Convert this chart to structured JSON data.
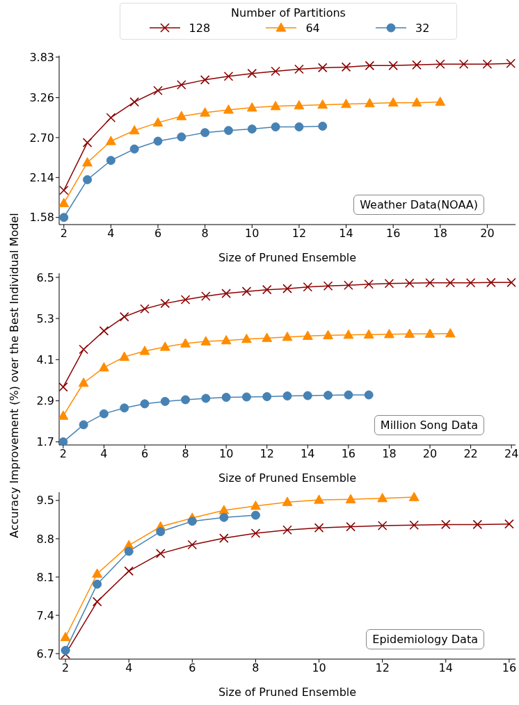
{
  "chart_data": [
    {
      "type": "line",
      "legend": "top",
      "legend_title": "Number of Partitions",
      "xlabel": "Size of Pruned Ensemble",
      "annotations": [
        "Weather Data(NOAA)"
      ],
      "xlim": [
        1.8,
        21.2
      ],
      "xticks": [
        2,
        4,
        6,
        8,
        10,
        12,
        14,
        16,
        18,
        20
      ],
      "ylim": [
        1.48,
        3.85
      ],
      "yticks": [
        1.58,
        2.14,
        {
          "value": 2.7,
          "label": "2.70"
        },
        3.26,
        3.83
      ],
      "grid": false,
      "series": [
        {
          "name": "128",
          "color": "#8b0000",
          "marker": "cross",
          "x": [
            2,
            3,
            4,
            5,
            6,
            7,
            8,
            9,
            10,
            11,
            12,
            13,
            14,
            15,
            16,
            17,
            18,
            19,
            20,
            21
          ],
          "values": [
            1.96,
            2.63,
            2.98,
            3.2,
            3.36,
            3.44,
            3.51,
            3.56,
            3.6,
            3.63,
            3.66,
            3.68,
            3.69,
            3.71,
            3.71,
            3.72,
            3.73,
            3.73,
            3.73,
            3.74
          ]
        },
        {
          "name": "64",
          "color": "#ff8c00",
          "marker": "triangle",
          "x": [
            2,
            3,
            4,
            5,
            6,
            7,
            8,
            9,
            10,
            11,
            12,
            13,
            14,
            15,
            16,
            17,
            18
          ],
          "values": [
            1.78,
            2.35,
            2.65,
            2.8,
            2.91,
            3.0,
            3.05,
            3.09,
            3.12,
            3.14,
            3.15,
            3.16,
            3.17,
            3.18,
            3.19,
            3.19,
            3.2
          ]
        },
        {
          "name": "32",
          "color": "#4682b4",
          "marker": "circle",
          "x": [
            2,
            3,
            4,
            5,
            6,
            7,
            8,
            9,
            10,
            11,
            12,
            13
          ],
          "values": [
            1.58,
            2.11,
            2.38,
            2.54,
            2.65,
            2.71,
            2.77,
            2.8,
            2.82,
            2.85,
            2.85,
            2.86
          ]
        }
      ]
    },
    {
      "type": "line",
      "ylabel": "Accuracy Improvement (%) over the Best Individual Model",
      "xlabel": "Size of Pruned Ensemble",
      "annotations": [
        "Million Song Data"
      ],
      "xlim": [
        1.8,
        24.2
      ],
      "xticks": [
        2,
        4,
        6,
        8,
        10,
        12,
        14,
        16,
        18,
        20,
        22,
        24
      ],
      "ylim": [
        1.61,
        6.62
      ],
      "yticks": [
        1.7,
        2.9,
        4.1,
        5.3,
        6.5
      ],
      "grid": false,
      "series": [
        {
          "name": "128",
          "color": "#8b0000",
          "marker": "cross",
          "x": [
            2,
            3,
            4,
            5,
            6,
            7,
            8,
            9,
            10,
            11,
            12,
            13,
            14,
            15,
            16,
            17,
            18,
            19,
            20,
            21,
            22,
            23,
            24
          ],
          "values": [
            3.3,
            4.4,
            4.94,
            5.35,
            5.58,
            5.74,
            5.85,
            5.95,
            6.03,
            6.09,
            6.14,
            6.17,
            6.22,
            6.25,
            6.27,
            6.3,
            6.32,
            6.33,
            6.34,
            6.34,
            6.34,
            6.35,
            6.35
          ]
        },
        {
          "name": "64",
          "color": "#ff8c00",
          "marker": "triangle",
          "x": [
            2,
            3,
            4,
            5,
            6,
            7,
            8,
            9,
            10,
            11,
            12,
            13,
            14,
            15,
            16,
            17,
            18,
            19,
            20,
            21
          ],
          "values": [
            2.46,
            3.42,
            3.87,
            4.18,
            4.35,
            4.47,
            4.57,
            4.63,
            4.66,
            4.7,
            4.73,
            4.76,
            4.79,
            4.81,
            4.82,
            4.83,
            4.84,
            4.85,
            4.85,
            4.86
          ]
        },
        {
          "name": "32",
          "color": "#4682b4",
          "marker": "circle",
          "x": [
            2,
            3,
            4,
            5,
            6,
            7,
            8,
            9,
            10,
            11,
            12,
            13,
            14,
            15,
            16,
            17
          ],
          "values": [
            1.7,
            2.2,
            2.52,
            2.69,
            2.81,
            2.88,
            2.93,
            2.97,
            3.0,
            3.01,
            3.02,
            3.04,
            3.05,
            3.06,
            3.07,
            3.07
          ]
        }
      ]
    },
    {
      "type": "line",
      "xlabel": "Size of Pruned Ensemble",
      "annotations": [
        "Epidemiology Data"
      ],
      "xlim": [
        1.8,
        16.2
      ],
      "xticks": [
        2,
        4,
        6,
        8,
        10,
        12,
        14,
        16
      ],
      "ylim": [
        6.6,
        9.65
      ],
      "yticks": [
        6.7,
        7.4,
        8.1,
        8.8,
        9.5
      ],
      "grid": false,
      "series": [
        {
          "name": "128",
          "color": "#8b0000",
          "marker": "cross",
          "x": [
            2,
            3,
            4,
            5,
            6,
            7,
            8,
            9,
            10,
            11,
            12,
            13,
            14,
            15,
            16
          ],
          "values": [
            6.69,
            7.65,
            8.21,
            8.53,
            8.69,
            8.81,
            8.9,
            8.96,
            9.0,
            9.02,
            9.04,
            9.05,
            9.06,
            9.06,
            9.07
          ]
        },
        {
          "name": "64",
          "color": "#ff8c00",
          "marker": "triangle",
          "x": [
            2,
            3,
            4,
            5,
            6,
            7,
            8,
            9,
            10,
            11,
            12,
            13
          ],
          "values": [
            7.0,
            8.16,
            8.68,
            9.02,
            9.18,
            9.32,
            9.4,
            9.47,
            9.51,
            9.52,
            9.54,
            9.56
          ]
        },
        {
          "name": "32",
          "color": "#4682b4",
          "marker": "circle",
          "x": [
            2,
            3,
            4,
            5,
            6,
            7,
            8
          ],
          "values": [
            6.76,
            7.97,
            8.57,
            8.93,
            9.12,
            9.19,
            9.23
          ]
        }
      ]
    }
  ]
}
